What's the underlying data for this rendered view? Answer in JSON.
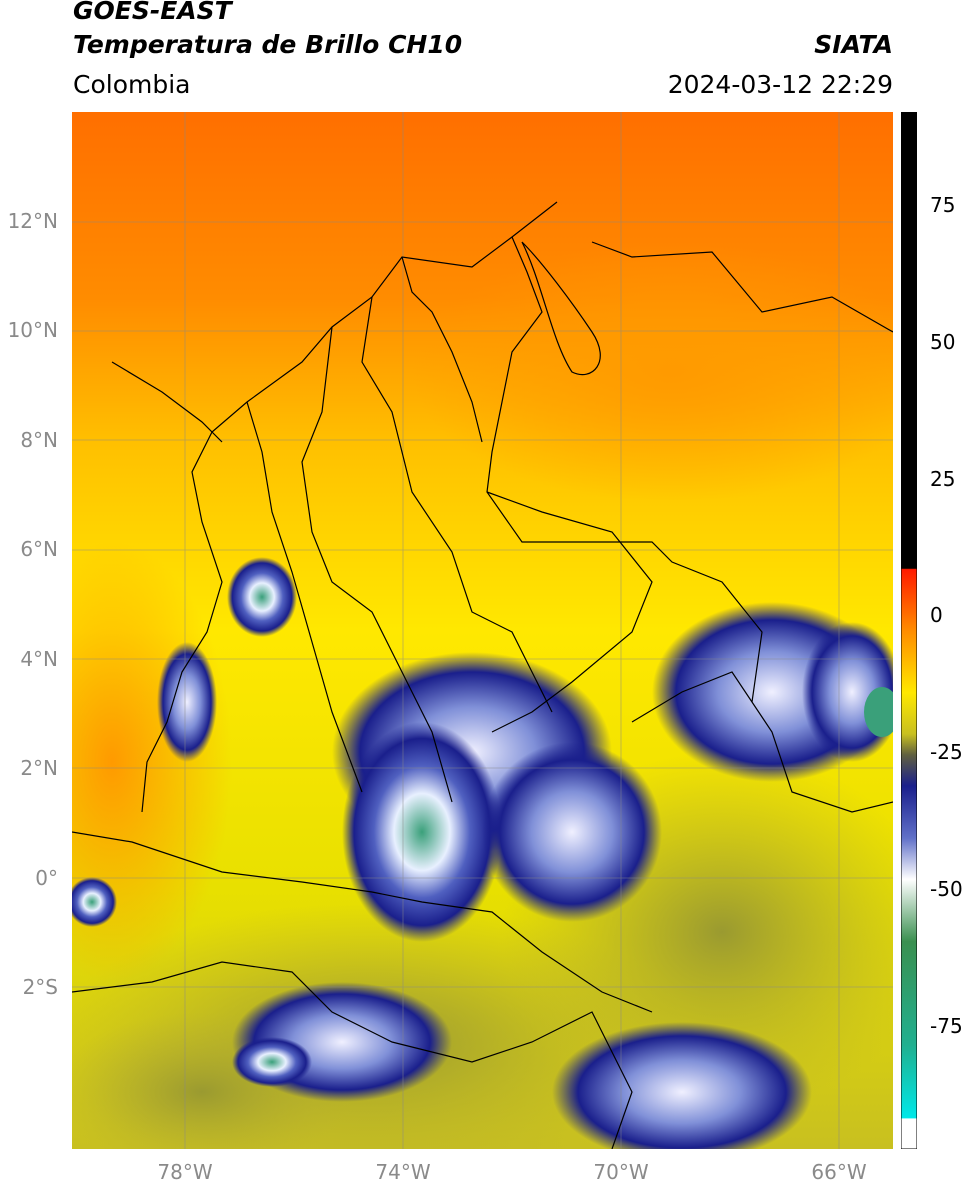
{
  "header": {
    "title_line1": "GOES-EAST",
    "title_line2": "Temperatura de Brillo CH10",
    "region": "Colombia",
    "organization": "SIATA",
    "timestamp": "2024-03-12 22:29"
  },
  "map": {
    "lat_labels": [
      "12°N",
      "10°N",
      "8°N",
      "6°N",
      "4°N",
      "2°N",
      "0°",
      "2°S"
    ],
    "lon_labels": [
      "78°W",
      "74°W",
      "70°W",
      "66°W"
    ],
    "colors": {
      "warm_sea": "#ff7a00",
      "warm_land": "#ffd000",
      "mid": "#b8b030",
      "cold_blue": "#1a1f8c",
      "very_cold_white": "#f4f4ff",
      "coldest_green": "#3aa07a"
    }
  },
  "colorbar": {
    "tick_labels": [
      "75",
      "50",
      "25",
      "0",
      "-25",
      "-50",
      "-75"
    ]
  }
}
